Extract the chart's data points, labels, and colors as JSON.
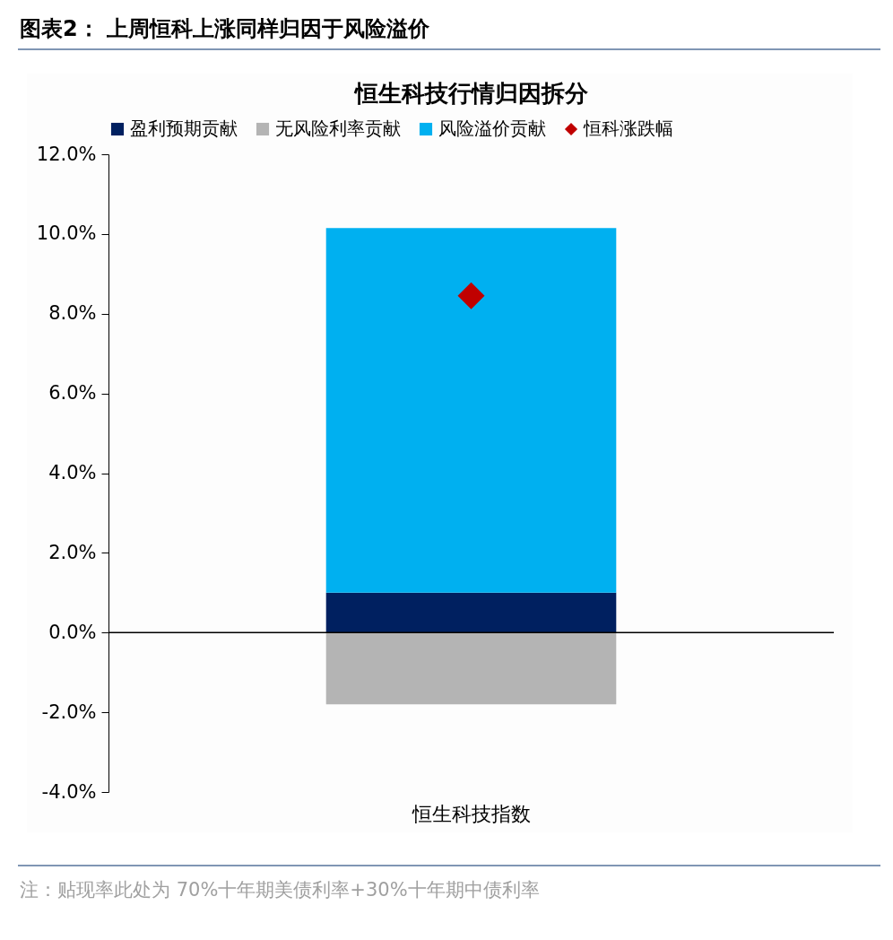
{
  "chart_data": {
    "type": "bar",
    "title": "图表2： 上周恒科上涨同样归因于风险溢价",
    "subtitle": "恒生科技行情归因拆分",
    "categories": [
      "恒生科技指数"
    ],
    "stacked": true,
    "series": [
      {
        "name": "盈利预期贡献",
        "color": "#002060",
        "values": [
          1.0
        ]
      },
      {
        "name": "无风险利率贡献",
        "color": "#b4b4b4",
        "values": [
          -1.8
        ]
      },
      {
        "name": "风险溢价贡献",
        "color": "#00b0f0",
        "values": [
          9.15
        ]
      },
      {
        "name": "恒科涨跌幅",
        "color": "#c00000",
        "type": "scatter",
        "marker": "diamond",
        "values": [
          8.45
        ],
        "x": [
          "恒生科技指数"
        ]
      }
    ],
    "ylim": [
      -4,
      12
    ],
    "yticks": [
      {
        "value": -4,
        "label": "-4.0%"
      },
      {
        "value": -2,
        "label": "-2.0%"
      },
      {
        "value": 0,
        "label": "0.0%"
      },
      {
        "value": 2,
        "label": "2.0%"
      },
      {
        "value": 4,
        "label": "4.0%"
      },
      {
        "value": 6,
        "label": "6.0%"
      },
      {
        "value": 8,
        "label": "8.0%"
      },
      {
        "value": 10,
        "label": "10.0%"
      },
      {
        "value": 12,
        "label": "12.0%"
      }
    ],
    "legend": "top",
    "annotations": [
      "注：贴现率此处为 70%十年期美债利率+30%十年期中债利率"
    ]
  }
}
